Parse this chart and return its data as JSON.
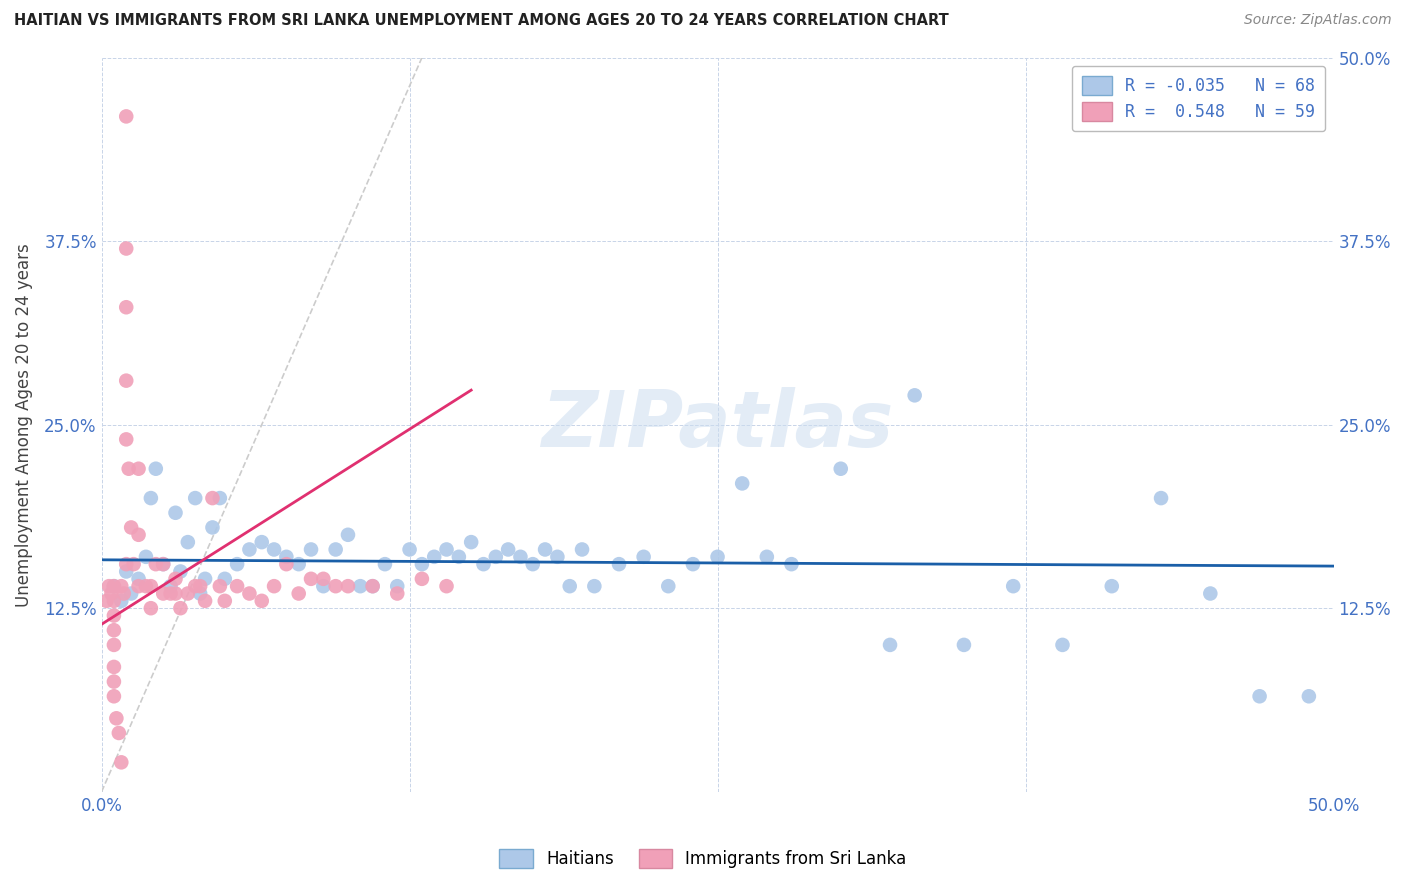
{
  "title": "HAITIAN VS IMMIGRANTS FROM SRI LANKA UNEMPLOYMENT AMONG AGES 20 TO 24 YEARS CORRELATION CHART",
  "source": "Source: ZipAtlas.com",
  "ylabel": "Unemployment Among Ages 20 to 24 years",
  "xlim": [
    0,
    0.5
  ],
  "ylim": [
    0,
    0.5
  ],
  "blue_R": -0.035,
  "blue_N": 68,
  "pink_R": 0.548,
  "pink_N": 59,
  "blue_color": "#adc8e8",
  "pink_color": "#f0a0b8",
  "blue_line_color": "#1a5fa8",
  "pink_line_color": "#e03070",
  "diag_color": "#cccccc",
  "legend_label_blue": "Haitians",
  "legend_label_pink": "Immigrants from Sri Lanka",
  "watermark": "ZIPatlas",
  "blue_scatter_x": [
    0.005,
    0.008,
    0.01,
    0.012,
    0.015,
    0.018,
    0.02,
    0.022,
    0.025,
    0.028,
    0.03,
    0.032,
    0.035,
    0.038,
    0.04,
    0.042,
    0.045,
    0.048,
    0.05,
    0.055,
    0.06,
    0.065,
    0.07,
    0.075,
    0.08,
    0.085,
    0.09,
    0.095,
    0.1,
    0.105,
    0.11,
    0.115,
    0.12,
    0.125,
    0.13,
    0.135,
    0.14,
    0.145,
    0.15,
    0.155,
    0.16,
    0.165,
    0.17,
    0.175,
    0.18,
    0.185,
    0.19,
    0.195,
    0.2,
    0.21,
    0.22,
    0.23,
    0.24,
    0.25,
    0.26,
    0.27,
    0.28,
    0.3,
    0.32,
    0.33,
    0.35,
    0.37,
    0.39,
    0.41,
    0.43,
    0.45,
    0.47,
    0.49
  ],
  "blue_scatter_y": [
    0.14,
    0.13,
    0.15,
    0.135,
    0.145,
    0.16,
    0.2,
    0.22,
    0.155,
    0.14,
    0.19,
    0.15,
    0.17,
    0.2,
    0.135,
    0.145,
    0.18,
    0.2,
    0.145,
    0.155,
    0.165,
    0.17,
    0.165,
    0.16,
    0.155,
    0.165,
    0.14,
    0.165,
    0.175,
    0.14,
    0.14,
    0.155,
    0.14,
    0.165,
    0.155,
    0.16,
    0.165,
    0.16,
    0.17,
    0.155,
    0.16,
    0.165,
    0.16,
    0.155,
    0.165,
    0.16,
    0.14,
    0.165,
    0.14,
    0.155,
    0.16,
    0.14,
    0.155,
    0.16,
    0.21,
    0.16,
    0.155,
    0.22,
    0.1,
    0.27,
    0.1,
    0.14,
    0.1,
    0.14,
    0.2,
    0.135,
    0.065,
    0.065
  ],
  "pink_scatter_x": [
    0.002,
    0.003,
    0.004,
    0.005,
    0.005,
    0.005,
    0.005,
    0.005,
    0.005,
    0.005,
    0.005,
    0.006,
    0.007,
    0.008,
    0.008,
    0.009,
    0.01,
    0.01,
    0.01,
    0.01,
    0.01,
    0.01,
    0.011,
    0.012,
    0.013,
    0.015,
    0.015,
    0.015,
    0.018,
    0.02,
    0.02,
    0.022,
    0.025,
    0.025,
    0.028,
    0.03,
    0.03,
    0.032,
    0.035,
    0.038,
    0.04,
    0.042,
    0.045,
    0.048,
    0.05,
    0.055,
    0.06,
    0.065,
    0.07,
    0.075,
    0.08,
    0.085,
    0.09,
    0.095,
    0.1,
    0.11,
    0.12,
    0.13,
    0.14
  ],
  "pink_scatter_y": [
    0.13,
    0.14,
    0.135,
    0.14,
    0.13,
    0.12,
    0.11,
    0.1,
    0.085,
    0.075,
    0.065,
    0.05,
    0.04,
    0.02,
    0.14,
    0.135,
    0.46,
    0.37,
    0.33,
    0.28,
    0.24,
    0.155,
    0.22,
    0.18,
    0.155,
    0.22,
    0.175,
    0.14,
    0.14,
    0.14,
    0.125,
    0.155,
    0.155,
    0.135,
    0.135,
    0.145,
    0.135,
    0.125,
    0.135,
    0.14,
    0.14,
    0.13,
    0.2,
    0.14,
    0.13,
    0.14,
    0.135,
    0.13,
    0.14,
    0.155,
    0.135,
    0.145,
    0.145,
    0.14,
    0.14,
    0.14,
    0.135,
    0.145,
    0.14
  ]
}
